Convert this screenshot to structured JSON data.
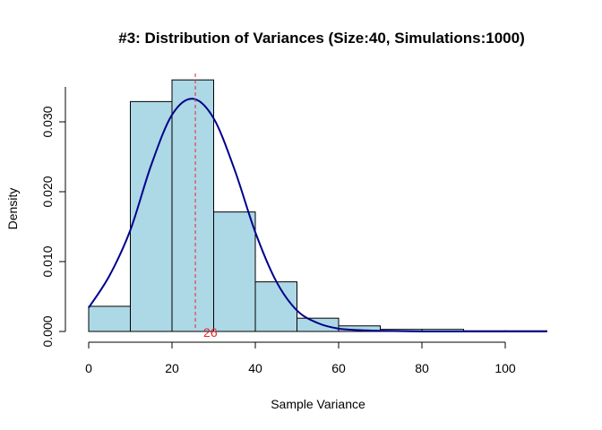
{
  "chart_data": {
    "type": "histogram",
    "title": "#3: Distribution of Variances (Size:40, Simulations:1000)",
    "xlabel": "Sample Variance",
    "ylabel": "Density",
    "xlim": [
      0,
      110
    ],
    "ylim": [
      0,
      0.035
    ],
    "x_ticks": [
      0,
      20,
      40,
      60,
      80,
      100
    ],
    "x_tick_labels": [
      "0",
      "20",
      "40",
      "60",
      "80",
      "100"
    ],
    "y_ticks": [
      0.0,
      0.01,
      0.02,
      0.03
    ],
    "y_tick_labels": [
      "0.000",
      "0.010",
      "0.020",
      "0.030"
    ],
    "bins": [
      {
        "start": 0,
        "end": 10,
        "density": 0.0036
      },
      {
        "start": 10,
        "end": 20,
        "density": 0.0329
      },
      {
        "start": 20,
        "end": 30,
        "density": 0.036
      },
      {
        "start": 30,
        "end": 40,
        "density": 0.0171
      },
      {
        "start": 40,
        "end": 50,
        "density": 0.0071
      },
      {
        "start": 50,
        "end": 60,
        "density": 0.0019
      },
      {
        "start": 60,
        "end": 70,
        "density": 0.0008
      },
      {
        "start": 70,
        "end": 80,
        "density": 0.0003
      },
      {
        "start": 80,
        "end": 90,
        "density": 0.0003
      },
      {
        "start": 90,
        "end": 100,
        "density": 0.0001
      },
      {
        "start": 100,
        "end": 110,
        "density": 0.0001
      }
    ],
    "density_curve": {
      "x": [
        0,
        5,
        10,
        15,
        20,
        25,
        30,
        35,
        40,
        45,
        50,
        55,
        60,
        65,
        70,
        80,
        90,
        100,
        110
      ],
      "y": [
        0.0034,
        0.008,
        0.0145,
        0.0238,
        0.031,
        0.0333,
        0.0305,
        0.0232,
        0.0142,
        0.0072,
        0.003,
        0.0012,
        0.0004,
        0.0002,
        0.0001,
        0.0,
        0.0,
        0.0,
        0.0
      ],
      "color": "#00008B"
    },
    "mean_line": {
      "x": 25.6,
      "label": "26",
      "color": "#E8262E"
    },
    "bar_fill": "#ADD8E6",
    "bar_stroke": "#000000",
    "grid": false
  }
}
